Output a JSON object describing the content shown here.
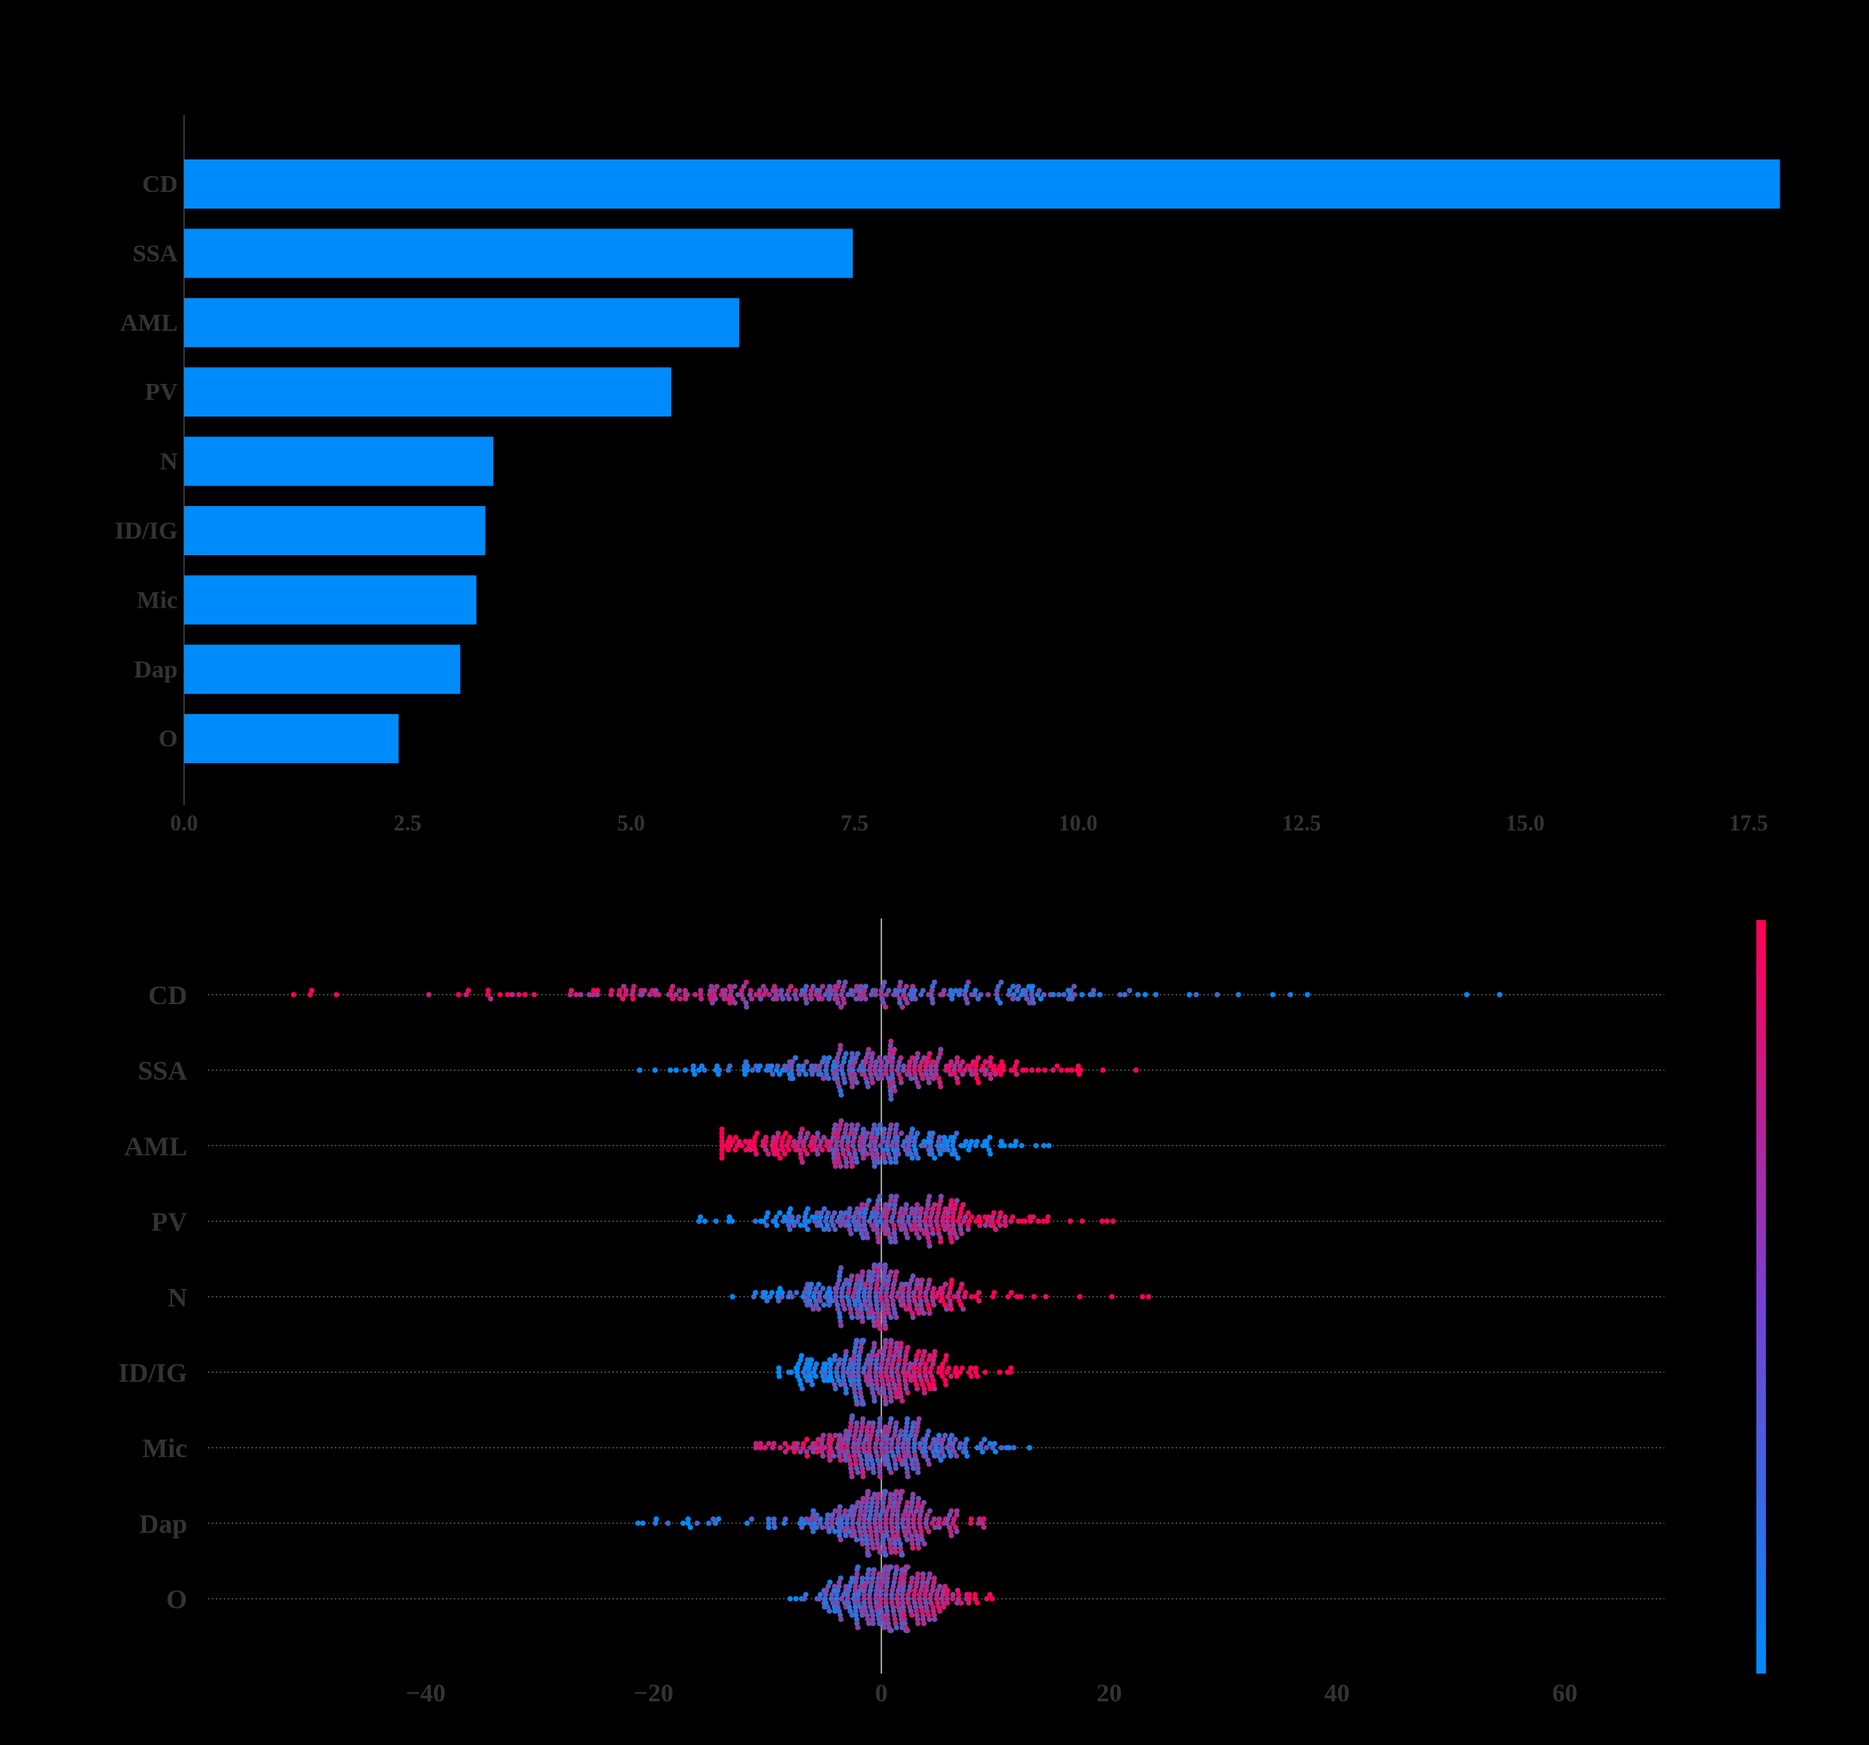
{
  "chart_data": [
    {
      "type": "bar",
      "orientation": "horizontal",
      "categories": [
        "CD",
        "SSA",
        "AML",
        "PV",
        "N",
        "ID/IG",
        "Mic",
        "Dap",
        "O"
      ],
      "values": [
        17.85,
        7.48,
        6.21,
        5.45,
        3.46,
        3.37,
        3.27,
        3.09,
        2.4
      ],
      "xlim": [
        0,
        18
      ],
      "xticks": [
        "0.0",
        "2.5",
        "5.0",
        "7.5",
        "10.0",
        "12.5",
        "15.0",
        "17.5"
      ],
      "xtick_values": [
        0,
        2.5,
        5,
        7.5,
        10,
        12.5,
        15,
        17.5
      ],
      "bar_color": "#008bfb",
      "grid": false
    },
    {
      "type": "scatter",
      "subtype": "beeswarm",
      "categories": [
        "CD",
        "SSA",
        "AML",
        "PV",
        "N",
        "ID/IG",
        "Mic",
        "Dap",
        "O"
      ],
      "xlim": [
        -59,
        71
      ],
      "xticks": [
        "−40",
        "−20",
        "0",
        "20",
        "40",
        "60"
      ],
      "xtick_values": [
        -40,
        -20,
        0,
        20,
        40,
        60
      ],
      "color_low": "#008bfb",
      "color_high": "#ff0052",
      "distributions": [
        {
          "name": "CD",
          "min": -53,
          "max": 63,
          "median": -3,
          "spread": 13,
          "trend": -1,
          "count": 300
        },
        {
          "name": "SSA",
          "min": -22,
          "max": 23,
          "median": 0,
          "spread": 6.5,
          "trend": 1,
          "count": 300
        },
        {
          "name": "AML",
          "min": -14,
          "max": 16,
          "median": -2,
          "spread": 6,
          "trend": -1,
          "count": 300
        },
        {
          "name": "PV",
          "min": -16,
          "max": 23,
          "median": 1,
          "spread": 5.5,
          "trend": 1,
          "count": 300
        },
        {
          "name": "N",
          "min": -14,
          "max": 24,
          "median": -0.5,
          "spread": 4,
          "trend": 1,
          "count": 300
        },
        {
          "name": "ID/IG",
          "min": -9,
          "max": 12,
          "median": -0.5,
          "spread": 3.5,
          "trend": 1,
          "count": 300
        },
        {
          "name": "Mic",
          "min": -11,
          "max": 13,
          "median": 0,
          "spread": 4,
          "trend": -0.5,
          "count": 300
        },
        {
          "name": "Dap",
          "min": -22,
          "max": 9,
          "median": 0.5,
          "spread": 3.5,
          "trend": 0.5,
          "count": 300
        },
        {
          "name": "O",
          "min": -8,
          "max": 10,
          "median": 0.5,
          "spread": 3,
          "trend": 0.5,
          "count": 300
        }
      ]
    }
  ]
}
